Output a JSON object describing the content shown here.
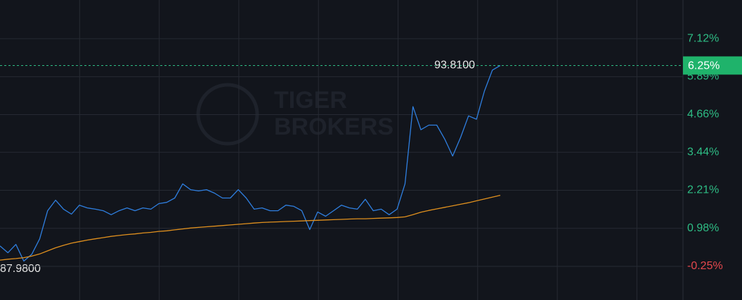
{
  "chart_data": {
    "type": "line",
    "watermark": [
      "TIGER",
      "BROKERS"
    ],
    "ylim": [
      -1.34,
      8.37
    ],
    "yticks": [
      {
        "value": -0.25,
        "label": "-0.25%"
      },
      {
        "value": 0.98,
        "label": "0.98%"
      },
      {
        "value": 2.21,
        "label": "2.21%"
      },
      {
        "value": 3.44,
        "label": "3.44%"
      },
      {
        "value": 4.66,
        "label": "4.66%"
      },
      {
        "value": 5.89,
        "label": "5.89%"
      },
      {
        "value": 7.12,
        "label": "7.12%"
      }
    ],
    "xlim": [
      0,
      86
    ],
    "grid": true,
    "color_up": "#2ebd85",
    "color_down": "#e5484d",
    "series": [
      {
        "color": "#2f7fe0",
        "values": [
          0.41,
          0.19,
          0.46,
          -0.08,
          0.14,
          0.64,
          1.55,
          1.89,
          1.6,
          1.44,
          1.73,
          1.64,
          1.6,
          1.55,
          1.42,
          1.55,
          1.64,
          1.55,
          1.64,
          1.6,
          1.78,
          1.82,
          1.96,
          2.42,
          2.23,
          2.19,
          2.23,
          2.12,
          1.96,
          1.96,
          2.23,
          1.96,
          1.6,
          1.64,
          1.55,
          1.55,
          1.73,
          1.69,
          1.55,
          0.94,
          1.51,
          1.37,
          1.55,
          1.73,
          1.64,
          1.6,
          1.92,
          1.55,
          1.6,
          1.42,
          1.6,
          2.42,
          4.92,
          4.17,
          4.32,
          4.32,
          3.87,
          3.32,
          3.92,
          4.62,
          4.51,
          5.42,
          6.1,
          6.25
        ]
      },
      {
        "color": "#e0901e",
        "values": [
          -0.05,
          -0.02,
          0.0,
          0.03,
          0.08,
          0.15,
          0.25,
          0.35,
          0.43,
          0.5,
          0.55,
          0.6,
          0.64,
          0.68,
          0.72,
          0.75,
          0.78,
          0.8,
          0.83,
          0.85,
          0.88,
          0.9,
          0.93,
          0.96,
          0.99,
          1.01,
          1.03,
          1.05,
          1.07,
          1.09,
          1.11,
          1.13,
          1.15,
          1.17,
          1.18,
          1.19,
          1.2,
          1.21,
          1.22,
          1.23,
          1.24,
          1.25,
          1.26,
          1.27,
          1.28,
          1.29,
          1.29,
          1.3,
          1.31,
          1.32,
          1.33,
          1.35,
          1.42,
          1.5,
          1.56,
          1.61,
          1.66,
          1.71,
          1.76,
          1.81,
          1.87,
          1.93,
          1.99,
          2.05
        ]
      }
    ],
    "last_price": "93.8100",
    "last_change": {
      "value": 6.25,
      "label": "6.25%"
    },
    "low_price": "87.9800"
  }
}
